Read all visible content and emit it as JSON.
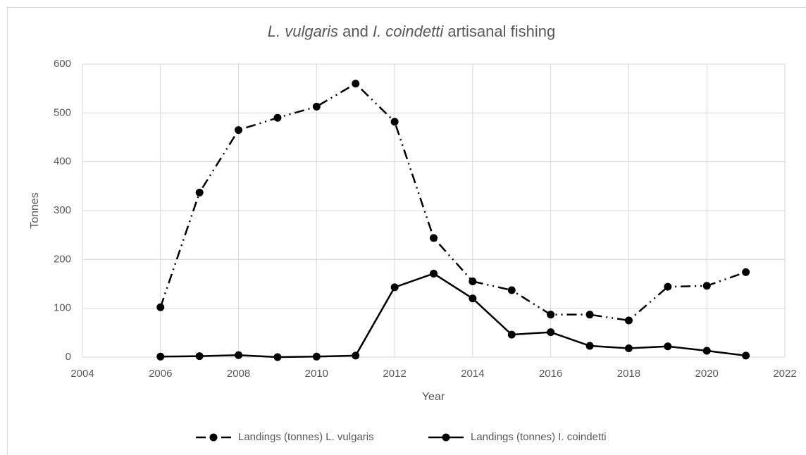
{
  "chart_data": {
    "type": "line",
    "title": [
      {
        "text": "L. vulgaris",
        "italic": true
      },
      {
        "text": " and "
      },
      {
        "text": "I. coindetti",
        "italic": true
      },
      {
        "text": " artisanal fishing"
      }
    ],
    "x_label": "Year",
    "y_label": "Tonnes",
    "x": [
      2006,
      2007,
      2008,
      2009,
      2010,
      2011,
      2012,
      2013,
      2014,
      2015,
      2016,
      2017,
      2018,
      2019,
      2020,
      2021
    ],
    "series": [
      {
        "name": "Landings (tonnes) L. vulgaris",
        "color": "#000000",
        "dash": "dash-dot-dot",
        "values": [
          102,
          337,
          465,
          490,
          513,
          560,
          482,
          244,
          155,
          137,
          87,
          87,
          75,
          144,
          146,
          174
        ]
      },
      {
        "name": "Landings (tonnes) I. coindetti",
        "color": "#000000",
        "dash": "solid",
        "values": [
          1,
          2,
          4,
          0,
          1,
          3,
          143,
          171,
          120,
          46,
          51,
          23,
          18,
          22,
          13,
          3
        ]
      }
    ],
    "xlim": [
      2004,
      2022
    ],
    "xticks": [
      2004,
      2006,
      2008,
      2010,
      2012,
      2014,
      2016,
      2018,
      2020,
      2022
    ],
    "ylim": [
      0,
      600
    ],
    "yticks": [
      0,
      100,
      200,
      300,
      400,
      500,
      600
    ],
    "grid": true,
    "legend": "bottom"
  }
}
